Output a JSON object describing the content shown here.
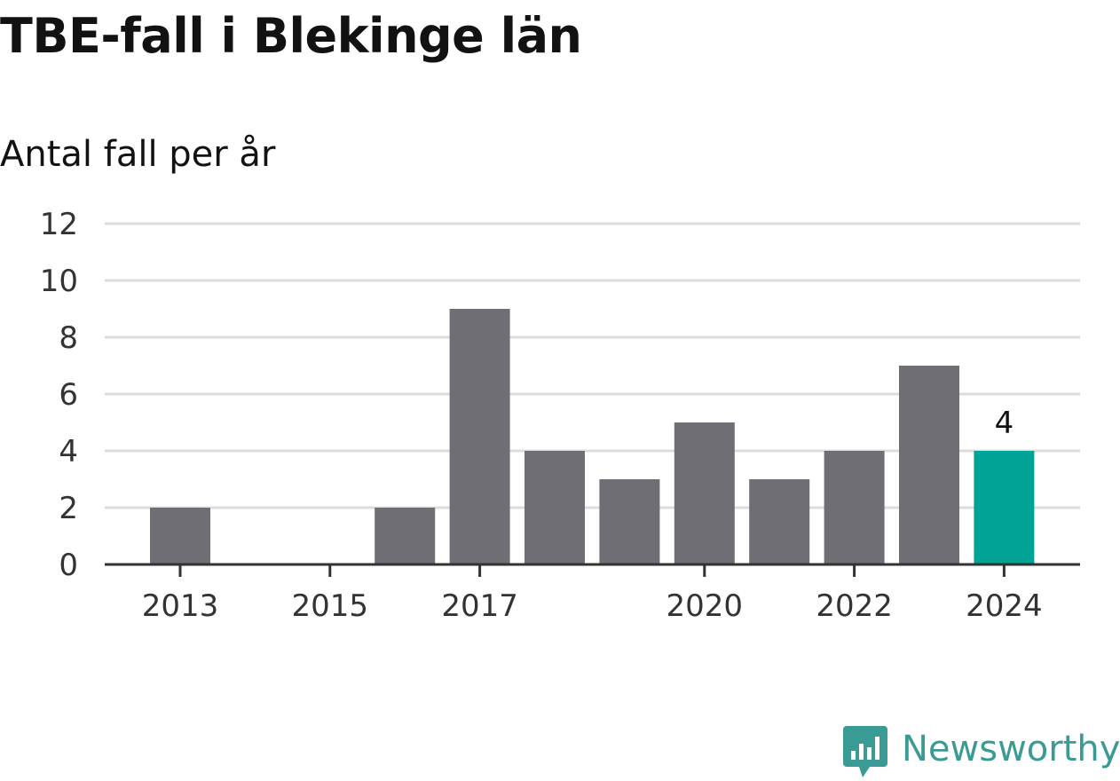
{
  "title": "TBE-fall i Blekinge län",
  "subtitle": "Antal fall per år",
  "brand": {
    "name": "Newsworthy",
    "logo_icon": "newsworthy-bar-chart-bubble-icon",
    "color": "#3a9a94"
  },
  "colors": {
    "bar": "#6f6e74",
    "highlight": "#00a396",
    "grid": "#dcdcdc",
    "axis": "#333333"
  },
  "chart_data": {
    "type": "bar",
    "title": "TBE-fall i Blekinge län",
    "subtitle": "Antal fall per år",
    "xlabel": "",
    "ylabel": "",
    "categories": [
      "2013",
      "2014",
      "2015",
      "2016",
      "2017",
      "2018",
      "2019",
      "2020",
      "2021",
      "2022",
      "2023",
      "2024"
    ],
    "values": [
      2,
      0,
      0,
      2,
      9,
      4,
      3,
      5,
      3,
      4,
      7,
      4
    ],
    "highlight_category": "2024",
    "data_labels": [
      {
        "category": "2024",
        "text": "4"
      }
    ],
    "x_tick_labels": [
      "2013",
      "2015",
      "2017",
      "2020",
      "2022",
      "2024"
    ],
    "y_ticks": [
      "0",
      "2",
      "4",
      "6",
      "8",
      "10",
      "12"
    ],
    "ylim": [
      0,
      12
    ],
    "grid": true,
    "legend": "none"
  }
}
